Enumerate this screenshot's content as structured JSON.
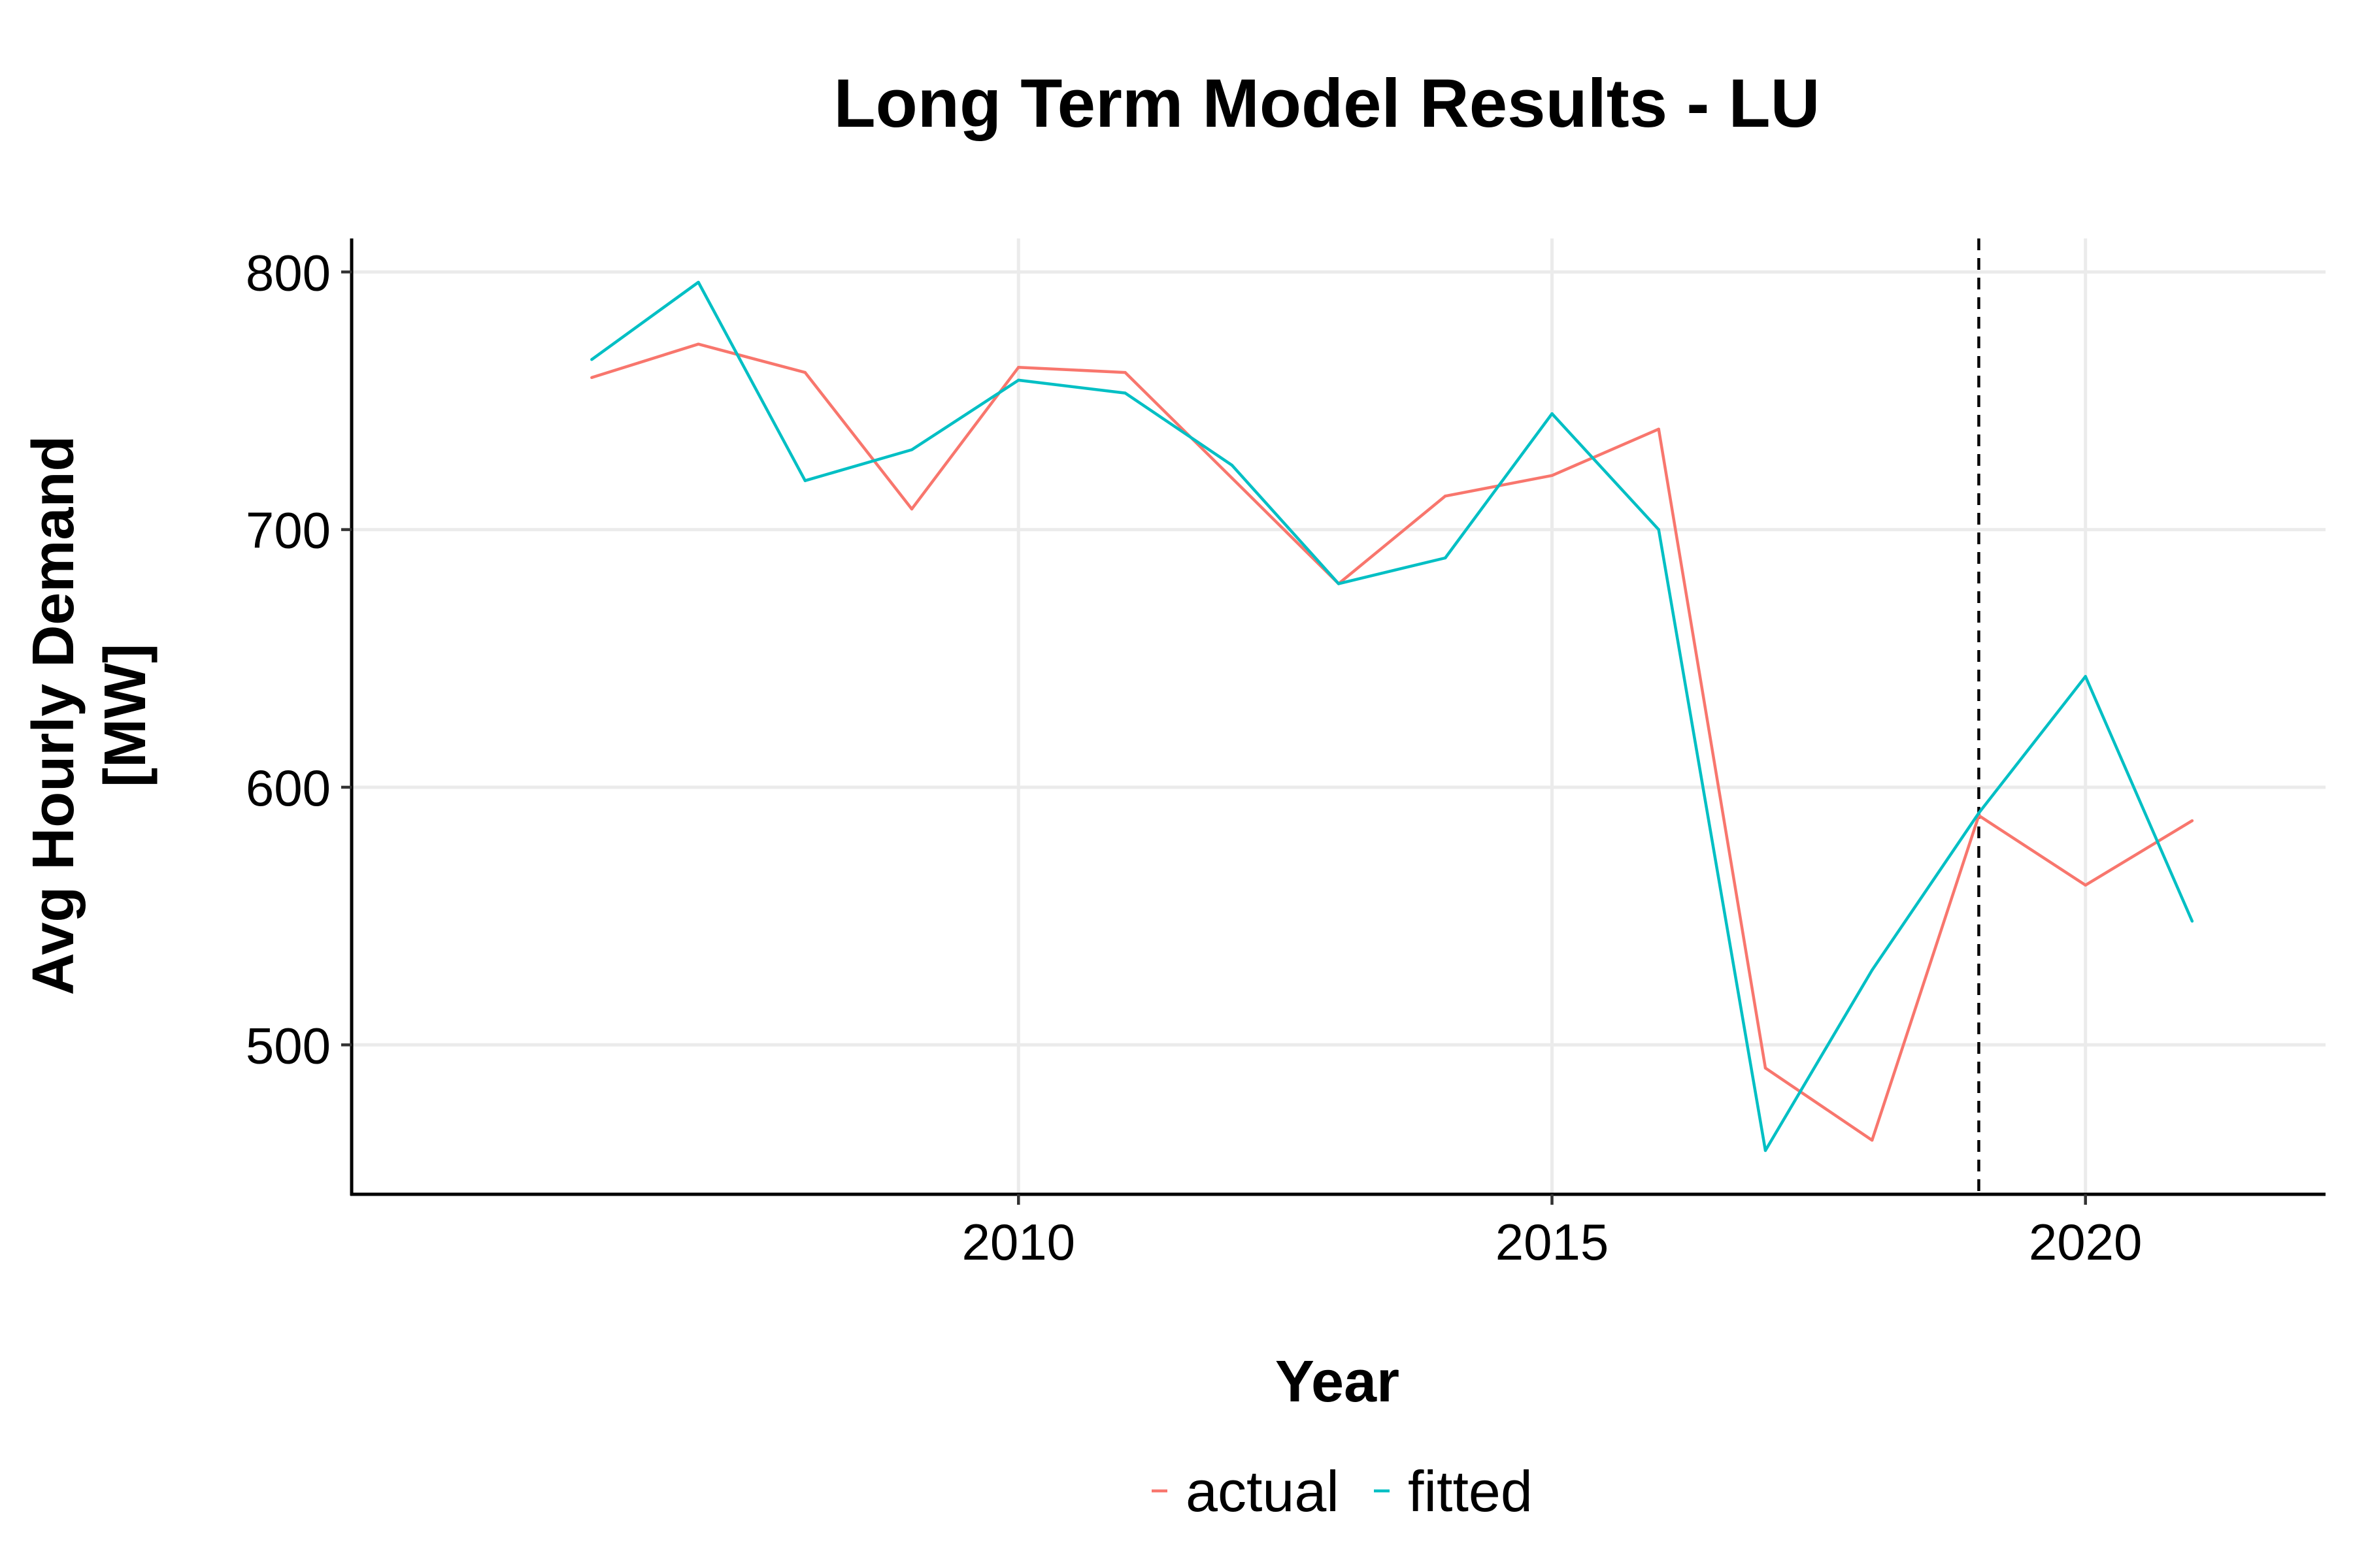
{
  "chart_data": {
    "type": "line",
    "title": "Long Term Model Results - LU",
    "xlabel": "Year",
    "ylabel_lines": [
      "Avg Hourly Demand",
      "[MW]"
    ],
    "x": [
      2006,
      2007,
      2008,
      2009,
      2010,
      2011,
      2012,
      2013,
      2014,
      2015,
      2016,
      2017,
      2018,
      2019,
      2020,
      2021
    ],
    "series": [
      {
        "name": "actual",
        "color": "#F8766D",
        "values": [
          759,
          772,
          761,
          708,
          763,
          761,
          720,
          679,
          713,
          721,
          739,
          491,
          463,
          589,
          562,
          587
        ]
      },
      {
        "name": "fitted",
        "color": "#00BFC4",
        "values": [
          766,
          796,
          719,
          731,
          758,
          753,
          725,
          679,
          689,
          745,
          700,
          459,
          529,
          590,
          643,
          548
        ]
      }
    ],
    "xlim": [
      2003.75,
      2022.25
    ],
    "ylim": [
      442,
      813
    ],
    "x_ticks": [
      2010,
      2015,
      2020
    ],
    "x_tick_labels": [
      "2010",
      "2015",
      "2020"
    ],
    "y_ticks": [
      500,
      600,
      700,
      800
    ],
    "y_tick_labels": [
      "500",
      "600",
      "700",
      "800"
    ],
    "vline": {
      "x": 2019,
      "style": "dashed",
      "color": "#000000"
    },
    "grid": true,
    "grid_color": "#EBEBEB",
    "legend_position": "bottom"
  }
}
